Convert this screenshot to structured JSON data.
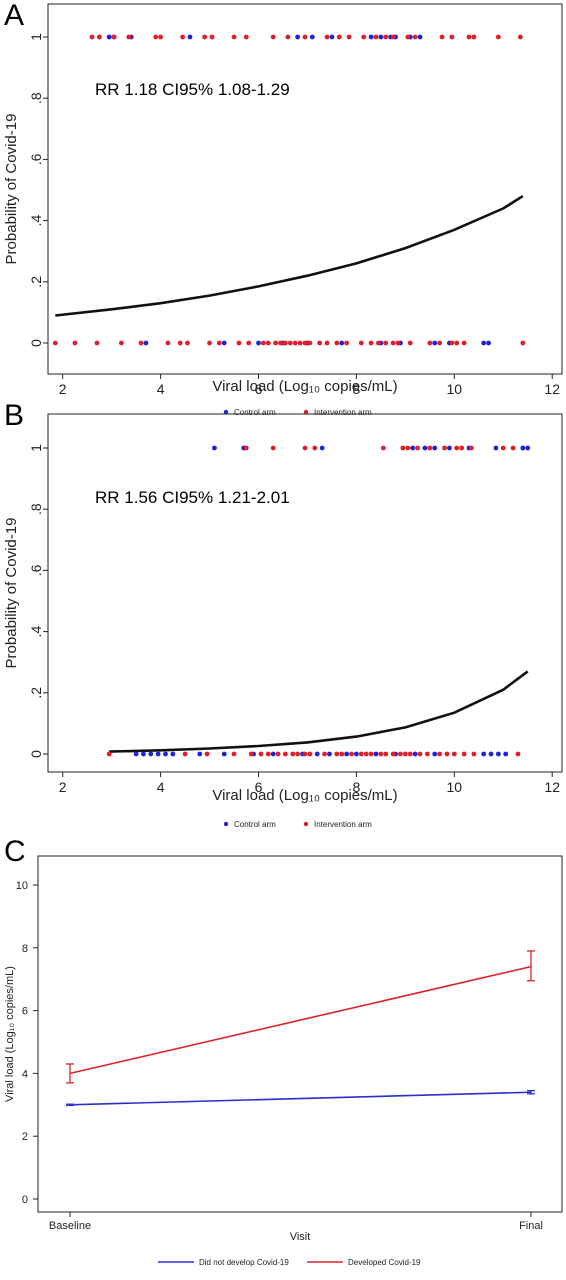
{
  "panels": [
    {
      "letter": "A",
      "annotation": "RR 1.18 CI95% 1.08-1.29"
    },
    {
      "letter": "B",
      "annotation": "RR 1.56 CI95% 1.21-2.01"
    },
    {
      "letter": "C",
      "annotation": ""
    }
  ],
  "colors": {
    "control": "#1f23d8",
    "intervention": "#e01f2a",
    "curve": "#111111",
    "not_developed": "#2b30c9",
    "developed": "#d9252b"
  },
  "chart_data": [
    {
      "type": "scatter",
      "title": "",
      "xlabel": "Viral load (Log₁₀ copies/mL)",
      "ylabel": "Probability of Covid-19",
      "xlim": [
        1.7,
        12.2
      ],
      "ylim": [
        0,
        1
      ],
      "xticks": [
        2,
        4,
        6,
        8,
        10,
        12
      ],
      "yticks": [
        0,
        0.2,
        0.4,
        0.6,
        0.8,
        1
      ],
      "ytick_labels": [
        "0",
        ".2",
        ".4",
        ".6",
        ".8",
        "1"
      ],
      "legend_placement": "bottom",
      "legend": [
        "Control arm",
        "Intervention arm"
      ],
      "grid": false,
      "fit_curve": {
        "name": "",
        "x": [
          1.85,
          3,
          4,
          5,
          6,
          7,
          8,
          9,
          10,
          11,
          11.4
        ],
        "y": [
          0.09,
          0.11,
          0.13,
          0.155,
          0.185,
          0.22,
          0.26,
          0.31,
          0.37,
          0.44,
          0.48
        ]
      },
      "series": [
        {
          "name": "Control arm",
          "x1": [
            2.95,
            3.05,
            3.4,
            4.6,
            6.8,
            7.1,
            7.5,
            8.3,
            8.5,
            8.7,
            8.8,
            9.1,
            9.3
          ],
          "x0": [
            3.7,
            5.3,
            6.0,
            6.5,
            7.0,
            7.7,
            8.5,
            8.9,
            9.6,
            9.9,
            10.6,
            10.7
          ]
        },
        {
          "name": "Intervention arm",
          "x1": [
            2.6,
            2.75,
            3.05,
            3.35,
            3.9,
            4.0,
            4.45,
            4.9,
            5.05,
            5.5,
            5.75,
            6.3,
            6.6,
            6.95,
            7.4,
            7.65,
            7.85,
            8.15,
            8.4,
            8.6,
            8.75,
            9.05,
            9.2,
            9.75,
            9.95,
            10.3,
            10.4,
            10.9,
            11.35
          ],
          "x0": [
            1.85,
            2.25,
            2.7,
            3.2,
            3.6,
            4.15,
            4.4,
            4.55,
            5.0,
            5.2,
            5.6,
            5.8,
            6.1,
            6.2,
            6.35,
            6.45,
            6.55,
            6.65,
            6.75,
            6.85,
            6.95,
            7.05,
            7.25,
            7.4,
            7.6,
            7.8,
            8.1,
            8.3,
            8.45,
            8.6,
            8.75,
            8.85,
            9.1,
            9.5,
            9.7,
            9.95,
            10.05,
            10.2,
            11.4
          ]
        }
      ]
    },
    {
      "type": "scatter",
      "title": "",
      "xlabel": "Viral load (Log₁₀ copies/mL)",
      "ylabel": "Probability of Covid-19",
      "xlim": [
        1.7,
        12.2
      ],
      "ylim": [
        0,
        1
      ],
      "xticks": [
        2,
        4,
        6,
        8,
        10,
        12
      ],
      "yticks": [
        0,
        0.2,
        0.4,
        0.6,
        0.8,
        1
      ],
      "ytick_labels": [
        "0",
        ".2",
        ".4",
        ".6",
        ".8",
        "1"
      ],
      "legend_placement": "bottom",
      "legend": [
        "Control arm",
        "Intervention arm"
      ],
      "grid": false,
      "fit_curve": {
        "name": "",
        "x": [
          2.95,
          4,
          5,
          6,
          7,
          8,
          9,
          10,
          11,
          11.5
        ],
        "y": [
          0.008,
          0.012,
          0.018,
          0.026,
          0.038,
          0.057,
          0.087,
          0.135,
          0.21,
          0.27
        ]
      },
      "series": [
        {
          "name": "Control arm",
          "x1": [
            5.1,
            5.7,
            7.3,
            9.15,
            9.4,
            9.6,
            9.9,
            10.3,
            10.85,
            11.4,
            11.5
          ],
          "x0": [
            3.5,
            3.65,
            3.8,
            3.95,
            4.1,
            4.25,
            4.8,
            5.3,
            5.9,
            6.3,
            6.9,
            7.2,
            7.45,
            7.8,
            8.0,
            8.4,
            8.8,
            9.2,
            9.6,
            10.6,
            10.75,
            10.9,
            11.05
          ]
        },
        {
          "name": "Intervention arm",
          "x1": [
            5.75,
            6.3,
            6.95,
            7.15,
            8.55,
            8.95,
            9.05,
            9.25,
            9.5,
            9.8,
            10.05,
            10.15,
            10.35,
            11.0,
            11.2
          ],
          "x0": [
            2.95,
            4.5,
            4.95,
            5.5,
            5.85,
            6.05,
            6.2,
            6.4,
            6.55,
            6.7,
            6.8,
            6.95,
            7.05,
            7.35,
            7.6,
            7.7,
            7.9,
            8.1,
            8.2,
            8.3,
            8.5,
            8.6,
            8.75,
            8.9,
            9.0,
            9.1,
            9.3,
            9.45,
            9.7,
            9.85,
            10.0,
            10.2,
            10.4,
            11.3
          ]
        }
      ]
    },
    {
      "type": "line",
      "title": "",
      "xlabel": "Visit",
      "ylabel": "Viral load (Log₁₀ copies/mL)",
      "categories": [
        "Baseline",
        "Final"
      ],
      "ylim": [
        0,
        10
      ],
      "yticks": [
        0,
        2,
        4,
        6,
        8,
        10
      ],
      "legend_placement": "bottom",
      "grid": false,
      "series": [
        {
          "name": "Did not develop Covid-19",
          "values": [
            3.0,
            3.4
          ],
          "err_low": [
            2.98,
            3.35
          ],
          "err_high": [
            3.02,
            3.45
          ]
        },
        {
          "name": "Developed Covid-19",
          "values": [
            4.0,
            7.4
          ],
          "err_low": [
            3.7,
            6.95
          ],
          "err_high": [
            4.3,
            7.9
          ]
        }
      ]
    }
  ]
}
